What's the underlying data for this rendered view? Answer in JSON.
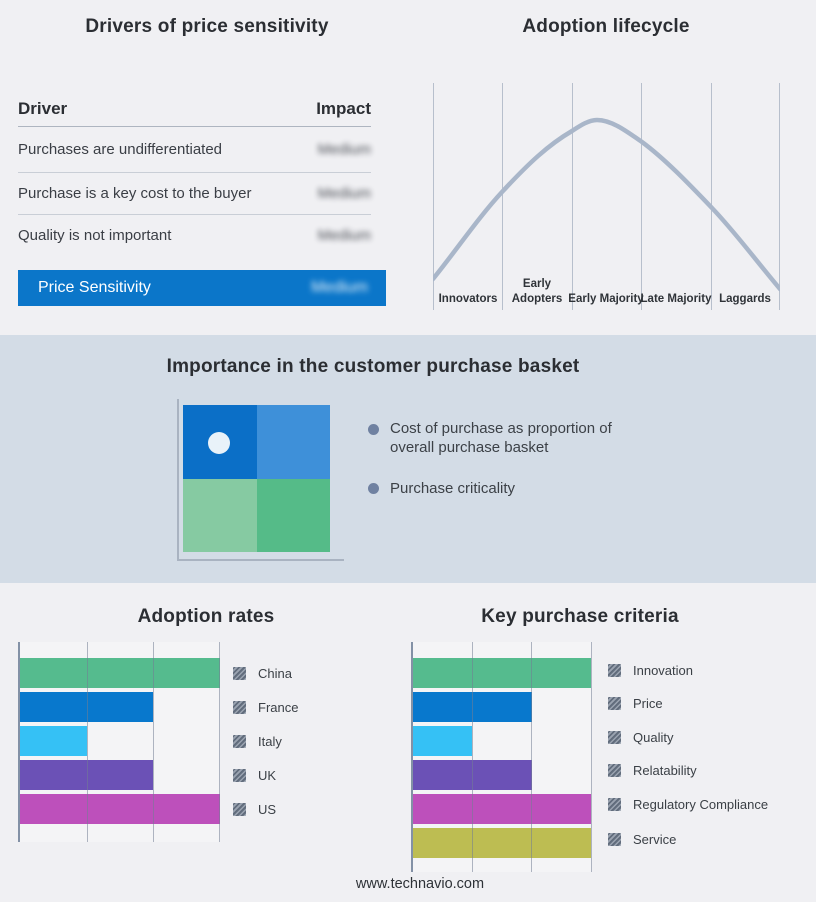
{
  "colors": {
    "page_bg": "#f0f0f3",
    "band_bg": "#d3dce6",
    "accent_blue": "#0b76c9",
    "curve": "#a9b6c9",
    "gridline": "#b7bfcc",
    "axis": "#8391a6",
    "legend_swatch_dark": "#626d7d",
    "legend_swatch_light": "#9ba4b1",
    "quadrant_top_left": "#0b6fc7",
    "quadrant_top_right": "#3e90d9",
    "quadrant_bottom_left": "#86caa2",
    "quadrant_bottom_right": "#55bb88"
  },
  "drivers": {
    "title": "Drivers of price sensitivity",
    "columns": {
      "driver": "Driver",
      "impact": "Impact"
    },
    "rows": [
      {
        "driver": "Purchases are undifferentiated",
        "impact": "Medium",
        "impact_blurred": true
      },
      {
        "driver": "Purchase is a key cost to the buyer",
        "impact": "Medium",
        "impact_blurred": true
      },
      {
        "driver": "Quality is not important",
        "impact": "Medium",
        "impact_blurred": true
      }
    ],
    "highlight": {
      "label": "Price Sensitivity",
      "impact": "Medium",
      "impact_blurred": true
    }
  },
  "basket": {
    "title": "Importance in the customer purchase basket",
    "bullets": [
      "Cost of purchase as proportion of overall purchase basket",
      "Purchase criticality"
    ]
  },
  "footer": {
    "url": "www.technavio.com"
  },
  "chart_data": [
    {
      "type": "line",
      "title": "Adoption lifecycle",
      "categories": [
        "Innovators",
        "Early Adopters",
        "Early Majority",
        "Late Majority",
        "Laggards"
      ],
      "description": "Bell-shaped adoption curve peaking near the Early Majority stage",
      "x_normalized": [
        0.0,
        0.2,
        0.4,
        0.47,
        0.6,
        0.8,
        1.0
      ],
      "y_normalized": [
        0.14,
        0.52,
        0.79,
        0.84,
        0.74,
        0.45,
        0.1
      ],
      "grid": true,
      "axis_values_hidden": true,
      "line_color": "#a9b6c9"
    },
    {
      "type": "bar",
      "title": "Adoption rates",
      "orientation": "horizontal",
      "categories": [
        "China",
        "France",
        "Italy",
        "UK",
        "US"
      ],
      "values": [
        3,
        2,
        1,
        2,
        3
      ],
      "xlim": [
        0,
        3
      ],
      "grid": true,
      "axis_values_hidden": true,
      "legend_position": "right",
      "legend_swatch": "hatched-gray",
      "colors": [
        "#55bb8e",
        "#0878cd",
        "#35c1f5",
        "#6b51b6",
        "#bd50bb"
      ]
    },
    {
      "type": "bar",
      "title": "Key purchase criteria",
      "orientation": "horizontal",
      "categories": [
        "Innovation",
        "Price",
        "Quality",
        "Relatability",
        "Regulatory Compliance",
        "Service"
      ],
      "values": [
        3,
        2,
        1,
        2,
        3,
        3
      ],
      "xlim": [
        0,
        3
      ],
      "grid": true,
      "axis_values_hidden": true,
      "legend_position": "right",
      "legend_swatch": "hatched-gray",
      "colors": [
        "#55bb8e",
        "#0878cd",
        "#35c1f5",
        "#6b51b6",
        "#bd50bb",
        "#bdbd52"
      ]
    }
  ]
}
